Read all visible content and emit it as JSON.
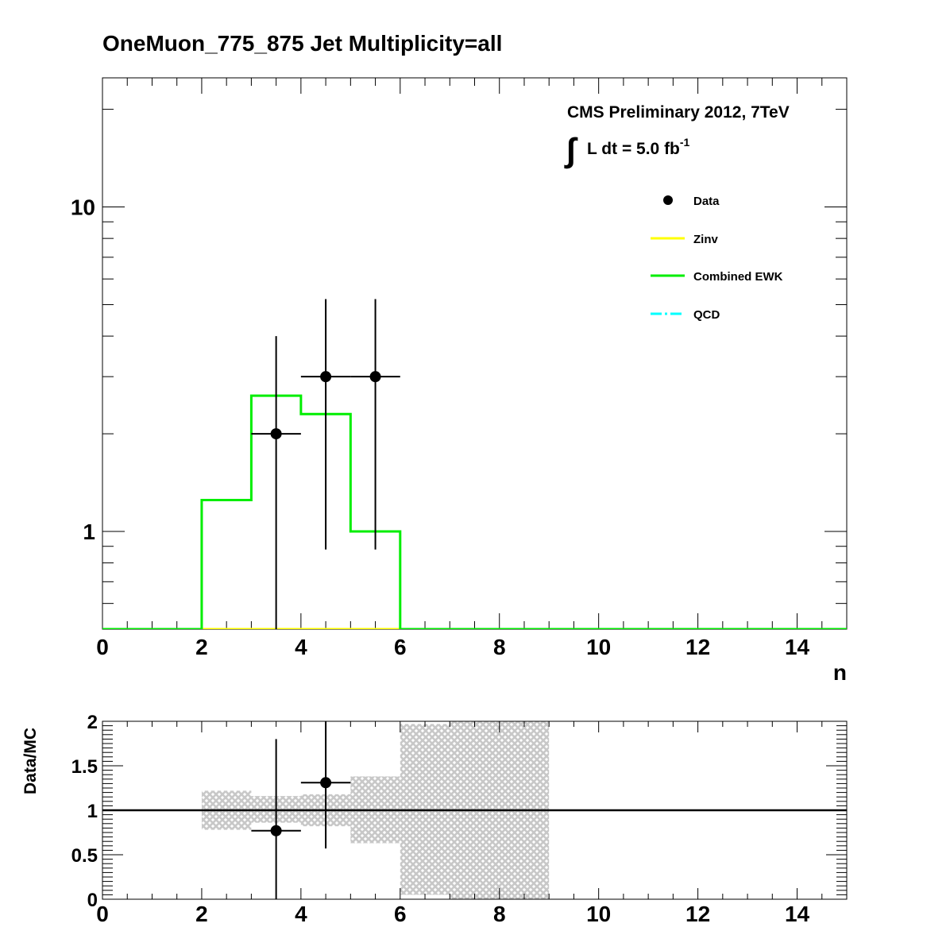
{
  "title": "OneMuon_775_875    Jet Multiplicity=all",
  "colors": {
    "data": "#000000",
    "zinv": "#ffff00",
    "ewk": "#00ee00",
    "qcd": "#00ffff",
    "band": "#c8c8c8"
  },
  "chart_data": [
    {
      "type": "step",
      "xlabel": "n",
      "ylabel": "",
      "xlim": [
        0,
        15
      ],
      "ylim": [
        0.5,
        25
      ],
      "yscale": "log",
      "xticks": [
        "0",
        "2",
        "4",
        "6",
        "8",
        "10",
        "12",
        "14"
      ],
      "yticks": [
        "1",
        "10"
      ],
      "annotations": {
        "experiment": "CMS Preliminary 2012, 7TeV",
        "lumi_integral": "∫",
        "lumi_text": "L dt = 5.0 fb",
        "lumi_exp": "-1"
      },
      "legend": {
        "position": "top-right",
        "entries": [
          "Data",
          "Zinv",
          "Combined EWK",
          "QCD"
        ]
      },
      "bin_edges": [
        0,
        1,
        2,
        3,
        4,
        5,
        6,
        7,
        8,
        9,
        10,
        11,
        12,
        13,
        14,
        15
      ],
      "series": [
        {
          "name": "Combined EWK",
          "values": [
            0,
            0,
            1.25,
            2.62,
            2.3,
            1.0,
            0,
            0,
            0,
            0,
            0,
            0,
            0,
            0,
            0
          ]
        },
        {
          "name": "Zinv",
          "values": [
            0,
            0,
            0,
            0,
            0,
            0,
            0,
            0,
            0,
            0,
            0,
            0,
            0,
            0,
            0
          ]
        },
        {
          "name": "Data",
          "points": [
            {
              "x": 3.5,
              "y": 2,
              "xerr": 0.5,
              "ylow": 0.5,
              "yhigh": 4.0
            },
            {
              "x": 4.5,
              "y": 3,
              "xerr": 0.5,
              "ylow": 0.88,
              "yhigh": 5.2
            },
            {
              "x": 5.5,
              "y": 3,
              "xerr": 0.5,
              "ylow": 0.88,
              "yhigh": 5.2
            }
          ]
        }
      ]
    },
    {
      "type": "ratio",
      "xlabel": "",
      "ylabel": "Data/MC",
      "xlim": [
        0,
        15
      ],
      "ylim": [
        0,
        2
      ],
      "xticks": [
        "0",
        "2",
        "4",
        "6",
        "8",
        "10",
        "12",
        "14"
      ],
      "yticks": [
        "0",
        "0.5",
        "1",
        "1.5",
        "2"
      ],
      "reference": 1,
      "band": [
        {
          "x0": 2,
          "x1": 3,
          "lo": 0.78,
          "hi": 1.22
        },
        {
          "x0": 3,
          "x1": 4,
          "lo": 0.86,
          "hi": 1.16
        },
        {
          "x0": 4,
          "x1": 5,
          "lo": 0.82,
          "hi": 1.18
        },
        {
          "x0": 5,
          "x1": 6,
          "lo": 0.63,
          "hi": 1.38
        },
        {
          "x0": 6,
          "x1": 7,
          "lo": 0.05,
          "hi": 1.97
        },
        {
          "x0": 7,
          "x1": 9,
          "lo": 0.0,
          "hi": 2.0
        }
      ],
      "points": [
        {
          "x": 3.5,
          "y": 0.77,
          "xerr": 0.5,
          "ylow": 0.0,
          "yhigh": 1.8
        },
        {
          "x": 4.5,
          "y": 1.31,
          "xerr": 0.5,
          "ylow": 0.57,
          "yhigh": 2.05
        }
      ]
    }
  ]
}
